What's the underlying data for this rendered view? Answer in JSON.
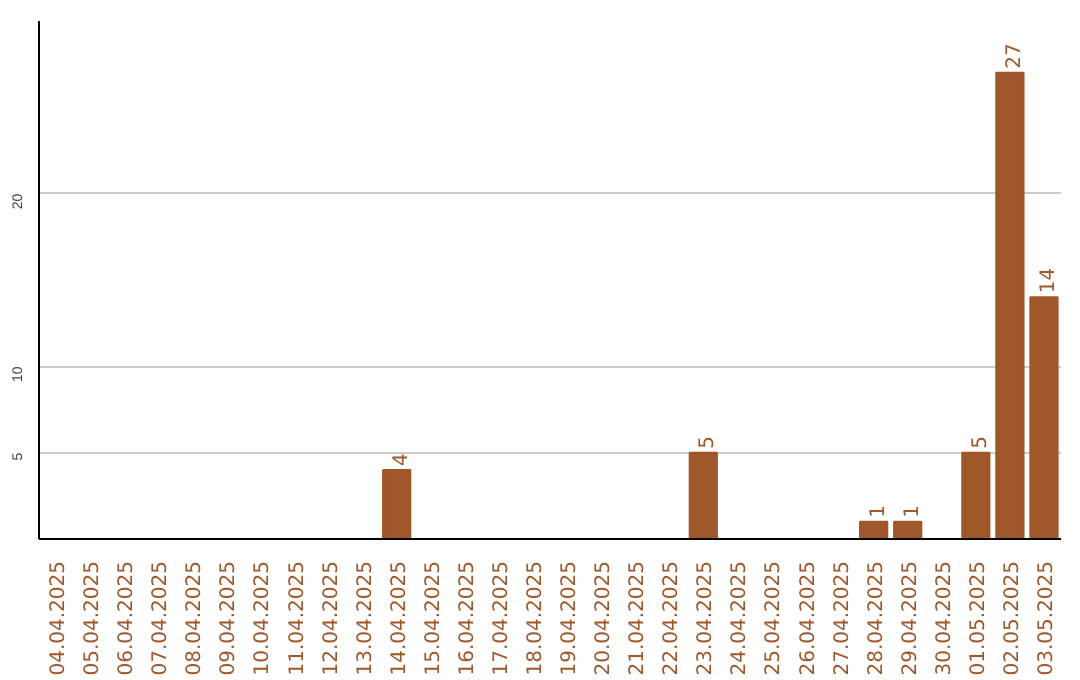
{
  "chart_data": {
    "type": "bar",
    "categories": [
      "04.04.2025",
      "05.04.2025",
      "06.04.2025",
      "07.04.2025",
      "08.04.2025",
      "09.04.2025",
      "10.04.2025",
      "11.04.2025",
      "12.04.2025",
      "13.04.2025",
      "14.04.2025",
      "15.04.2025",
      "16.04.2025",
      "17.04.2025",
      "18.04.2025",
      "19.04.2025",
      "20.04.2025",
      "21.04.2025",
      "22.04.2025",
      "23.04.2025",
      "24.04.2025",
      "25.04.2025",
      "26.04.2025",
      "27.04.2025",
      "28.04.2025",
      "29.04.2025",
      "30.04.2025",
      "01.05.2025",
      "02.05.2025",
      "03.05.2025"
    ],
    "values": [
      0,
      0,
      0,
      0,
      0,
      0,
      0,
      0,
      0,
      0,
      4,
      0,
      0,
      0,
      0,
      0,
      0,
      0,
      0,
      5,
      0,
      0,
      0,
      0,
      1,
      1,
      0,
      5,
      27,
      14
    ],
    "value_labels": [
      null,
      null,
      null,
      null,
      null,
      null,
      null,
      null,
      null,
      null,
      "4",
      null,
      null,
      null,
      null,
      null,
      null,
      null,
      null,
      "5",
      null,
      null,
      null,
      null,
      "1",
      "1",
      null,
      "5",
      "27",
      "14"
    ],
    "color": "#a0572a",
    "ylim": [
      0,
      30
    ],
    "yticks": [
      5,
      10,
      20
    ],
    "grid": "y"
  }
}
